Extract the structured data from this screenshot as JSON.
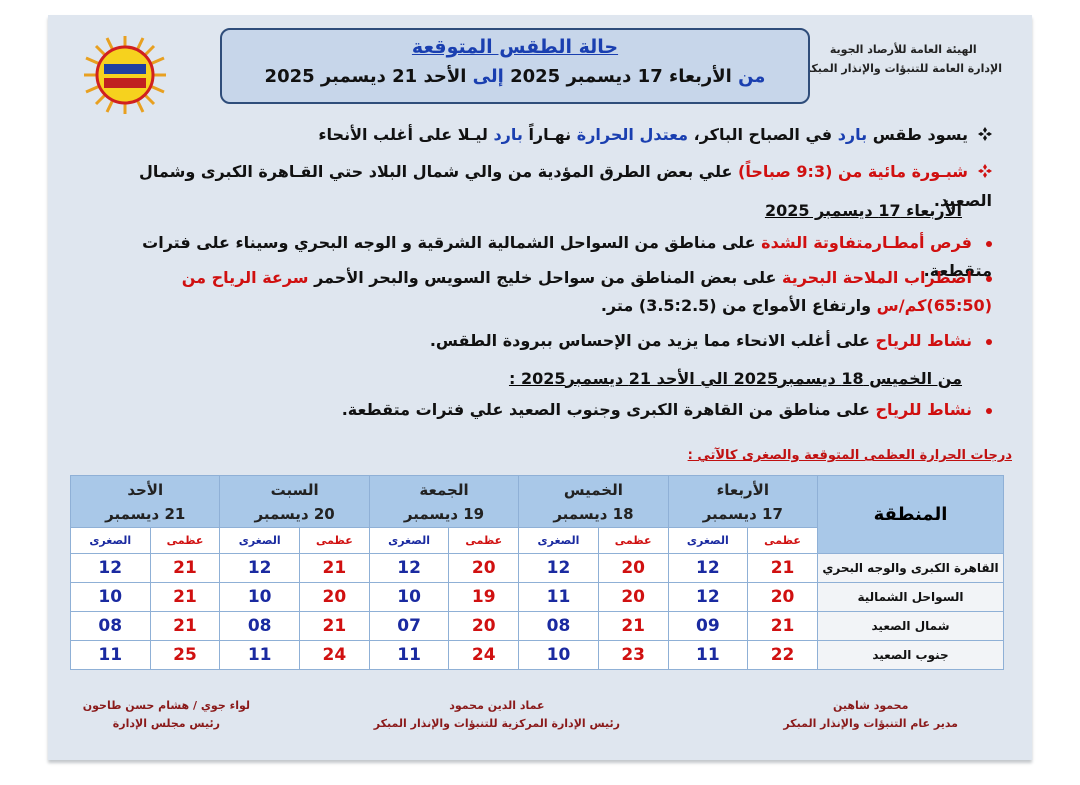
{
  "header": {
    "org": [
      "الهيئة العامة للأرصاد الجوية",
      "الإدارة العامة للتنبؤات والإنذار المبكر"
    ]
  },
  "title": {
    "heading": "حالة الطقس المتوقعة",
    "period": [
      {
        "text": "من ",
        "color": "#1a3fb0"
      },
      {
        "text": "الأربعاء 17 ديسمبر 2025 ",
        "color": "#111111"
      },
      {
        "text": "إلى ",
        "color": "#1a3fb0"
      },
      {
        "text": "الأحد 21 ديسمبر 2025",
        "color": "#111111"
      }
    ]
  },
  "bullets": [
    {
      "marker": "diamond",
      "segments": [
        {
          "text": "يسود طقس ",
          "color": "#111111"
        },
        {
          "text": "بارد",
          "color": "#1a3fb0"
        },
        {
          "text": " في الصباح الباكر، ",
          "color": "#111111"
        },
        {
          "text": "معتدل الحرارة",
          "color": "#1a3fb0"
        },
        {
          "text": " نهـاراً ",
          "color": "#111111"
        },
        {
          "text": "بارد",
          "color": "#1a3fb0"
        },
        {
          "text": " ليـلا على أغلب الأنحاء",
          "color": "#111111"
        }
      ]
    },
    {
      "marker": "diamond-red",
      "segments": [
        {
          "text": "شبـورة مائية من (9:3 صباحاً)",
          "color": "#d01010"
        },
        {
          "text": " علي بعض الطرق المؤدية من والي شمال البلاد حتي القـاهرة الكبرى وشمال الصعيد.",
          "color": "#111111"
        }
      ]
    },
    {
      "marker": "heading",
      "segments": [
        {
          "text": "الأربعاء 17 ديسمبر 2025",
          "color": "#111111"
        }
      ]
    },
    {
      "marker": "dot",
      "segments": [
        {
          "text": "فرص أمطـارمتفاوتة الشدة",
          "color": "#d01010"
        },
        {
          "text": " على مناطق من السواحل الشمالية الشرقية و الوجه البحري وسيناء على فترات متقطعة.",
          "color": "#111111"
        }
      ]
    },
    {
      "marker": "dot",
      "segments": [
        {
          "text": "اضطراب الملاحة البحرية",
          "color": "#d01010"
        },
        {
          "text": " على بعض المناطق من سواحل خليج السويس والبحر الأحمر ",
          "color": "#111111"
        },
        {
          "text": "سرعة الرياح من (65:50)كم/س",
          "color": "#d01010"
        },
        {
          "text": " وارتفاع الأمواج من (3.5:2.5) متر.",
          "color": "#111111"
        }
      ]
    },
    {
      "marker": "dot",
      "segments": [
        {
          "text": "نشاط للرياح",
          "color": "#d01010"
        },
        {
          "text": " على  أغلب الانحاء مما يزيد من الإحساس ببرودة الطقس.",
          "color": "#111111"
        }
      ]
    },
    {
      "marker": "heading",
      "segments": [
        {
          "text": "من الخميس 18 ديسمبر2025 الي الأحد 21 ديسمبر2025 :",
          "color": "#111111"
        }
      ]
    },
    {
      "marker": "dot",
      "segments": [
        {
          "text": "نشاط للرياح",
          "color": "#d01010"
        },
        {
          "text": " على مناطق من القاهرة الكبرى وجنوب الصعيد علي فترات متقطعة.",
          "color": "#111111"
        }
      ]
    }
  ],
  "table": {
    "caption": "درجات الحرارة العظمى المتوقعة والصغرى كالآتي :",
    "region_header": "المنطقة",
    "days": [
      {
        "name": "الأربعاء",
        "date": "17  ديسمبر"
      },
      {
        "name": "الخميس",
        "date": "18  ديسمبر"
      },
      {
        "name": "الجمعة",
        "date": "19  ديسمبر"
      },
      {
        "name": "السبت",
        "date": "20  ديسمبر"
      },
      {
        "name": "الأحد",
        "date": "21  ديسمبر"
      }
    ],
    "sub_headers": [
      "عظمى",
      "الصغرى"
    ],
    "rows": [
      {
        "region": "القاهرة الكبرى والوجه البحري",
        "values": [
          "21",
          "12",
          "20",
          "12",
          "20",
          "12",
          "21",
          "12",
          "21",
          "12"
        ]
      },
      {
        "region": "السواحل الشمالية",
        "values": [
          "20",
          "12",
          "20",
          "11",
          "19",
          "10",
          "20",
          "10",
          "21",
          "10"
        ]
      },
      {
        "region": "شمال الصعيد",
        "values": [
          "21",
          "09",
          "21",
          "08",
          "20",
          "07",
          "21",
          "08",
          "21",
          "08"
        ]
      },
      {
        "region": "جنوب الصعيد",
        "values": [
          "22",
          "11",
          "23",
          "10",
          "24",
          "11",
          "24",
          "11",
          "25",
          "11"
        ]
      }
    ]
  },
  "signatures": [
    {
      "name": "محمود شاهين",
      "role": "مدير عام التنبؤات والإنذار المبكر"
    },
    {
      "name": "عماد الدين محمود",
      "role": "رئيس الإدارة المركزية للتنبؤات والإنذار المبكر"
    },
    {
      "name": "لواء جوي / هشام حسن طاحون",
      "role": "رئيس مجلس الإدارة"
    }
  ]
}
